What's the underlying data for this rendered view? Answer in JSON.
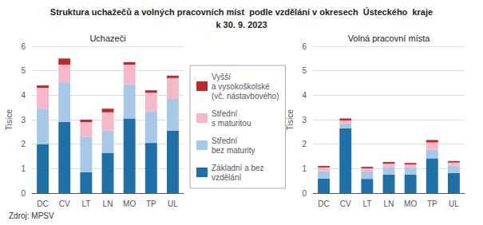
{
  "title": [
    "Struktura uchažečů a volných pracovních míst  podle vzdělání v okresech  Ústeckého  kraje",
    "k 30. 9. 2023"
  ],
  "annotations": [
    "Zdroj: MPSV"
  ],
  "chart_data": [
    {
      "type": "bar",
      "stacked": true,
      "title": "Uchazeči",
      "ylabel": "Tisíce",
      "categories": [
        "DC",
        "CV",
        "LT",
        "LN",
        "MO",
        "TP",
        "UL"
      ],
      "series": [
        {
          "name": "Základní a bez\nvzdělání",
          "color": "#1F6FA8",
          "values": [
            2.0,
            2.9,
            0.85,
            1.65,
            3.05,
            2.05,
            2.55
          ]
        },
        {
          "name": "Střední\nbez maturity",
          "color": "#A8C8E8",
          "values": [
            1.45,
            1.6,
            1.45,
            0.9,
            1.4,
            1.3,
            1.3
          ]
        },
        {
          "name": "Střední\ns maturitou",
          "color": "#F4B8C8",
          "values": [
            0.85,
            0.75,
            0.6,
            0.75,
            0.8,
            0.75,
            0.85
          ]
        },
        {
          "name": "Vyšší\na vysokoškolské\n(vč. nástavbového)",
          "color": "#C0282C",
          "values": [
            0.1,
            0.25,
            0.1,
            0.15,
            0.1,
            0.1,
            0.1
          ]
        }
      ],
      "ylim": [
        0,
        6
      ],
      "yticks": [
        0,
        1,
        2,
        3,
        4,
        5,
        6
      ],
      "grid": true,
      "legend": "center"
    },
    {
      "type": "bar",
      "stacked": true,
      "title": "Volná pracovní místa",
      "ylabel": "Tisíce",
      "categories": [
        "DC",
        "CV",
        "LT",
        "LN",
        "MO",
        "TP",
        "UL"
      ],
      "series": [
        {
          "name": "Základní a bez\nvzdělání",
          "color": "#1F6FA8",
          "values": [
            0.6,
            2.65,
            0.58,
            0.75,
            0.75,
            1.42,
            0.82
          ]
        },
        {
          "name": "Střední\nbez maturity",
          "color": "#A8C8E8",
          "values": [
            0.3,
            0.2,
            0.3,
            0.3,
            0.3,
            0.35,
            0.3
          ]
        },
        {
          "name": "Střední\ns maturitou",
          "color": "#F4B8C8",
          "values": [
            0.15,
            0.12,
            0.13,
            0.15,
            0.12,
            0.3,
            0.13
          ]
        },
        {
          "name": "Vyšší\na vysokoškolské\n(vč. nástavbového)",
          "color": "#C0282C",
          "values": [
            0.06,
            0.08,
            0.06,
            0.07,
            0.06,
            0.1,
            0.06
          ]
        }
      ],
      "ylim": [
        0,
        6
      ],
      "yticks": [
        0,
        1,
        2,
        3,
        4,
        5,
        6
      ],
      "grid": true,
      "legend": "center"
    }
  ]
}
